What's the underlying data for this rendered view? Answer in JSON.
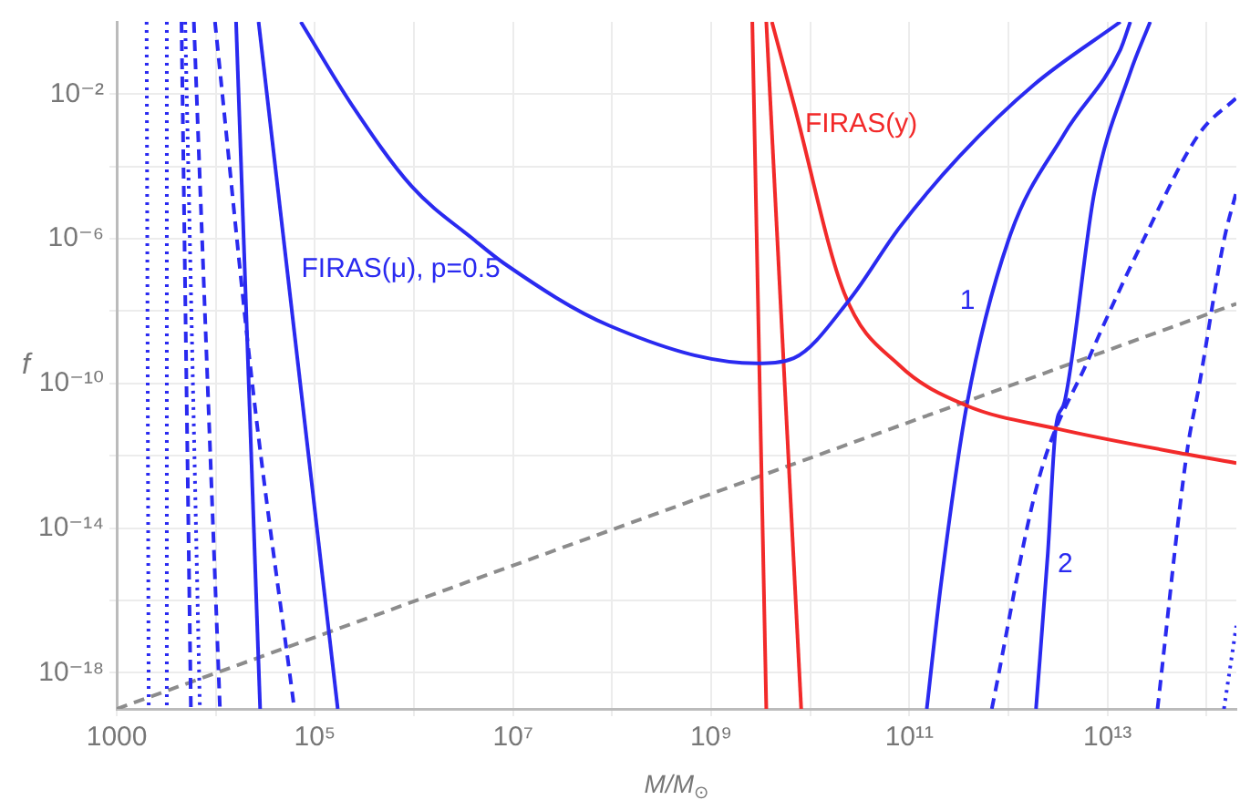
{
  "chart_data": {
    "type": "line",
    "xlabel": "M/M$_{⊙}$",
    "ylabel": "f",
    "log": "xy",
    "grid": true,
    "legend": false,
    "marker": "none",
    "xlim": [
      1000,
      200000000000000.0
    ],
    "ylim": [
      1e-19,
      1
    ],
    "xticks": [
      1000,
      {
        "value": 10000.0,
        "label": null
      },
      {
        "value": 100000.0,
        "label": "10⁵"
      },
      {
        "value": 1000000.0,
        "label": null
      },
      {
        "value": 10000000.0,
        "label": "10⁷"
      },
      {
        "value": 100000000.0,
        "label": null
      },
      {
        "value": 1000000000.0,
        "label": "10⁹"
      },
      {
        "value": 10000000000.0,
        "label": null
      },
      {
        "value": 100000000000.0,
        "label": "10¹¹"
      },
      {
        "value": 1000000000000.0,
        "label": null
      },
      {
        "value": 10000000000000.0,
        "label": "10¹³"
      },
      {
        "value": 100000000000000.0,
        "label": null
      }
    ],
    "yticks": [
      {
        "value": 1e-18,
        "label": "10⁻¹⁸"
      },
      {
        "value": 1e-16,
        "label": null
      },
      {
        "value": 1e-14,
        "label": "10⁻¹⁴"
      },
      {
        "value": 1e-12,
        "label": null
      },
      {
        "value": 1e-10,
        "label": "10⁻¹⁰"
      },
      {
        "value": 1e-08,
        "label": null
      },
      {
        "value": 1e-06,
        "label": "10⁻⁶"
      },
      {
        "value": 0.0001,
        "label": null
      },
      {
        "value": 0.01,
        "label": "10⁻²"
      }
    ],
    "series": [
      {
        "name": "FIRAS(μ), p=0.5",
        "color": "#2a2af0",
        "line_style": "solid",
        "x": [
          72000.0,
          230000.0,
          950000.0,
          4100000.0,
          8100000.0,
          93000000.0,
          2900000000.0,
          6800000000.0,
          25000000000.0,
          79000000000.0,
          320000000000.0,
          1800000000000.0,
          13500000000000.0
        ],
        "values": [
          1,
          0.0056,
          2.8e-05,
          9.1e-07,
          2.1e-07,
          4e-09,
          3.6e-10,
          5e-10,
          2.1e-08,
          2e-06,
          0.00019,
          0.018,
          1
        ]
      },
      {
        "name": "FIRAS(y)",
        "color": "#f22a2a",
        "line_style": "solid",
        "x": [
          4100000000.0,
          6800000000.0,
          22000000000.0,
          79000000000.0,
          370000000000.0,
          3200000000000.0,
          63000000000000.0,
          200000000000000.0
        ],
        "values": [
          1,
          0.0056,
          3.2e-08,
          3.2e-10,
          2.5e-11,
          5.5e-12,
          1.1e-12,
          6.3e-13
        ]
      },
      {
        "color": "#f22a2a",
        "line_style": "solid",
        "x": [
          2600000000.0,
          3600000000.0
        ],
        "values": [
          1,
          1e-19
        ]
      },
      {
        "color": "#f22a2a",
        "line_style": "solid",
        "x": [
          3600000000.0,
          8100000000.0
        ],
        "values": [
          1,
          1e-19
        ]
      },
      {
        "name": "1",
        "color": "#2a2af0",
        "line_style": "solid",
        "x": [
          150000000000.0,
          210000000000.0,
          380000000000.0,
          1000000000000.0,
          3700000000000.0,
          13500000000000.0,
          17000000000000.0
        ],
        "values": [
          1e-19,
          3.2e-16,
          2.5e-11,
          9.1e-07,
          0.00083,
          0.17,
          1
        ]
      },
      {
        "name": "2",
        "color": "#2a2af0",
        "line_style": "solid",
        "x": [
          1900000000000.0,
          2500000000000.0,
          3000000000000.0,
          3700000000000.0,
          7400000000000.0,
          17000000000000.0,
          27000000000000.0
        ],
        "values": [
          1e-19,
          2e-15,
          5.5e-12,
          3.2e-11,
          2e-05,
          0.04,
          1
        ]
      },
      {
        "color": "#2a2af0",
        "line_style": "dashed",
        "x": [
          680000000000.0,
          2000000000000.0,
          6500000000000.0,
          23000000000000.0,
          85000000000000.0,
          200000000000000.0
        ],
        "values": [
          1e-19,
          2e-13,
          5e-10,
          9.1e-07,
          0.00083,
          0.0079
        ]
      },
      {
        "color": "#2a2af0",
        "line_style": "dashed",
        "x": [
          32000000000000.0,
          63000000000000.0,
          85000000000000.0,
          150000000000000.0,
          200000000000000.0
        ],
        "values": [
          1e-19,
          1.1e-12,
          1e-10,
          9.1e-07,
          2e-05
        ]
      },
      {
        "color": "#2a2af0",
        "line_style": "dotted",
        "x": [
          150000000000000.0,
          200000000000000.0
        ],
        "values": [
          1e-19,
          2e-17
        ]
      },
      {
        "color": "#2a2af0",
        "line_style": "solid",
        "x": [
          16000.0,
          28000.0
        ],
        "values": [
          1,
          1e-19
        ]
      },
      {
        "color": "#2a2af0",
        "line_style": "solid",
        "x": [
          27000.0,
          170000.0
        ],
        "values": [
          1,
          1e-19
        ]
      },
      {
        "color": "#2a2af0",
        "line_style": "dashed",
        "x": [
          9800.0,
          24000.0,
          62000.0
        ],
        "values": [
          1,
          5e-11,
          1e-19
        ]
      },
      {
        "color": "#2a2af0",
        "line_style": "dashed",
        "x": [
          6000.0,
          11000.0
        ],
        "values": [
          1,
          1e-19
        ]
      },
      {
        "color": "#2a2af0",
        "line_style": "dashed",
        "x": [
          4500.0,
          5600.0
        ],
        "values": [
          1,
          1e-19
        ]
      },
      {
        "color": "#2a2af0",
        "line_style": "dotted",
        "x": [
          2000.0,
          2100.0
        ],
        "values": [
          1,
          1e-19
        ]
      },
      {
        "color": "#2a2af0",
        "line_style": "dotted",
        "x": [
          3200.0,
          3200.0
        ],
        "values": [
          1,
          1e-19
        ]
      },
      {
        "color": "#2a2af0",
        "line_style": "dotted",
        "x": [
          4900.0,
          6900.0
        ],
        "values": [
          1,
          1e-19
        ]
      },
      {
        "color": "#8c8c8c",
        "line_style": "dashed",
        "x": [
          1000,
          200000000000000.0
        ],
        "values": [
          1e-19,
          1.6e-08
        ]
      }
    ]
  }
}
